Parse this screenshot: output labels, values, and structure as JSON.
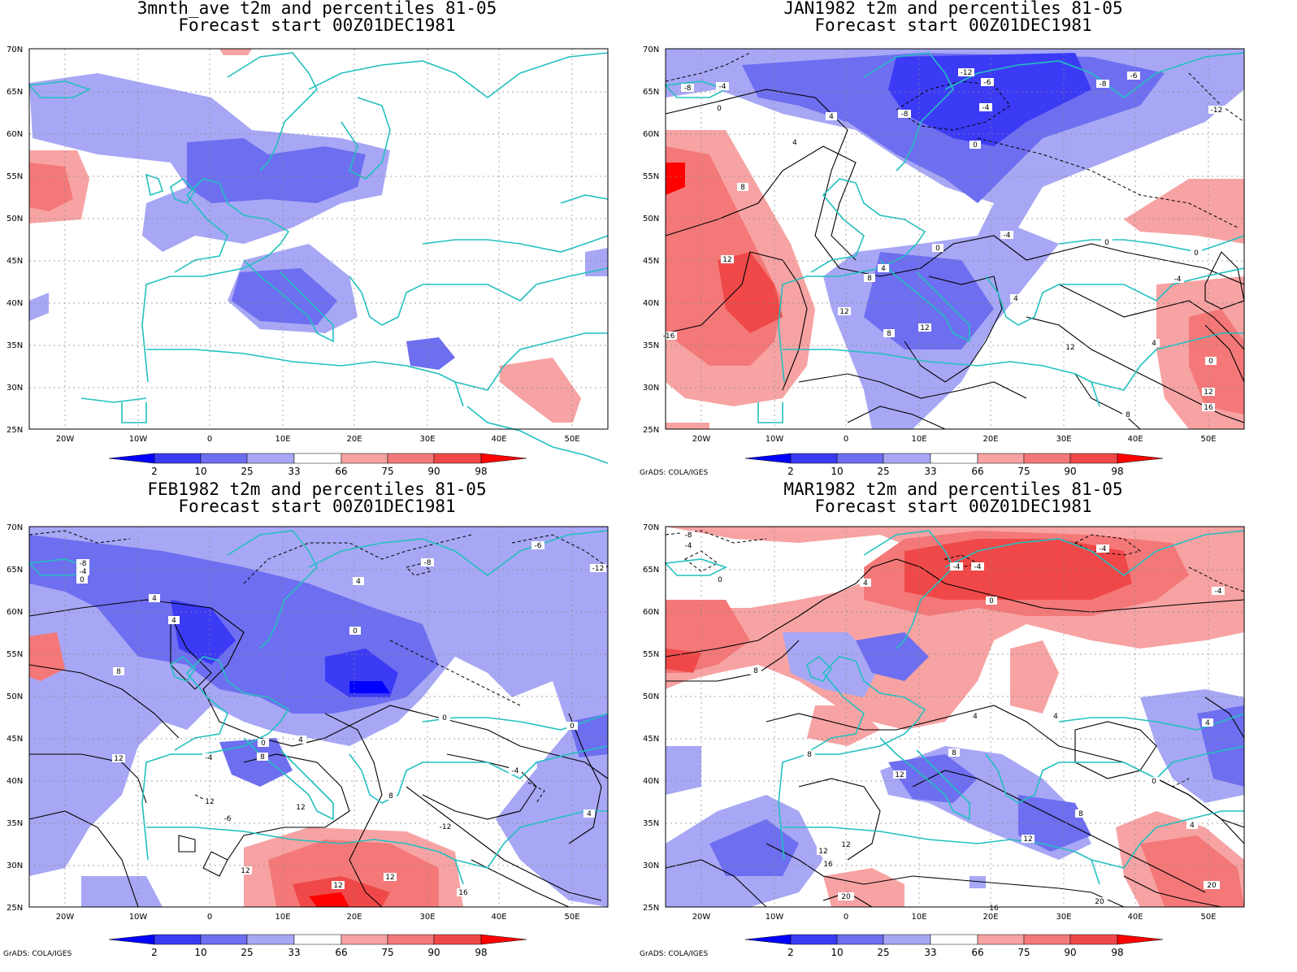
{
  "panels": [
    {
      "id": "p1",
      "title": "3mnth_ave t2m and percentiles 81-05",
      "subtitle": "Forecast start 00Z01DEC1981",
      "credit": ""
    },
    {
      "id": "p2",
      "title": "JAN1982 t2m and percentiles 81-05",
      "subtitle": "Forecast start 00Z01DEC1981",
      "credit": "GrADS: COLA/IGES"
    },
    {
      "id": "p3",
      "title": "FEB1982 t2m and percentiles 81-05",
      "subtitle": "Forecast start 00Z01DEC1981",
      "credit": "GrADS: COLA/IGES"
    },
    {
      "id": "p4",
      "title": "MAR1982 t2m and percentiles 81-05",
      "subtitle": "Forecast start 00Z01DEC1981",
      "credit": "GrADS: COLA/IGES"
    }
  ],
  "map": {
    "lat_labels": [
      "70N",
      "65N",
      "60N",
      "55N",
      "50N",
      "45N",
      "40N",
      "35N",
      "30N",
      "25N"
    ],
    "lon_labels": [
      "20W",
      "10W",
      "0",
      "10E",
      "20E",
      "30E",
      "40E",
      "50E"
    ],
    "lon_range": [
      -25,
      55
    ],
    "lat_range": [
      25,
      70
    ],
    "coast_color": "#22c0c0",
    "grid": true
  },
  "colorbar": {
    "labels": [
      "2",
      "10",
      "25",
      "33",
      "66",
      "75",
      "90",
      "98"
    ],
    "colors": [
      "#0000ff",
      "#3b3bf5",
      "#6e6ef0",
      "#a7a7f5",
      "#ffffff",
      "#f7a3a3",
      "#f47878",
      "#f04848",
      "#ff0000"
    ]
  },
  "contour_labels": {
    "p2": [
      "-8",
      "-4",
      "0",
      "-12",
      "-6",
      "-8",
      "-4",
      "-8",
      "4",
      "0",
      "-6",
      "-12",
      "4",
      "8",
      "0",
      "-4",
      "0",
      "4",
      "12",
      "8",
      "12",
      "8",
      "12",
      "4",
      "0",
      "-16",
      "12",
      "8",
      "16",
      "12",
      "-4",
      "4",
      "0"
    ],
    "p3": [
      "-8",
      "-4",
      "0",
      "-8",
      "-6",
      "-12",
      "4",
      "4",
      "4",
      "0",
      "8",
      "0",
      "4",
      "-4",
      "8",
      "12",
      "12",
      "-6",
      "0",
      "12",
      "12",
      "12",
      "-4",
      "8",
      "16",
      "12",
      "-12",
      "0",
      "4"
    ],
    "p4": [
      "-8",
      "-4",
      "0",
      "-4",
      "-4",
      "-4",
      "4",
      "0",
      "4",
      "8",
      "4",
      "8",
      "8",
      "12",
      "12",
      "8",
      "12",
      "20",
      "16",
      "12",
      "16",
      "20",
      "20",
      "4",
      "-4",
      "0",
      "4"
    ]
  }
}
